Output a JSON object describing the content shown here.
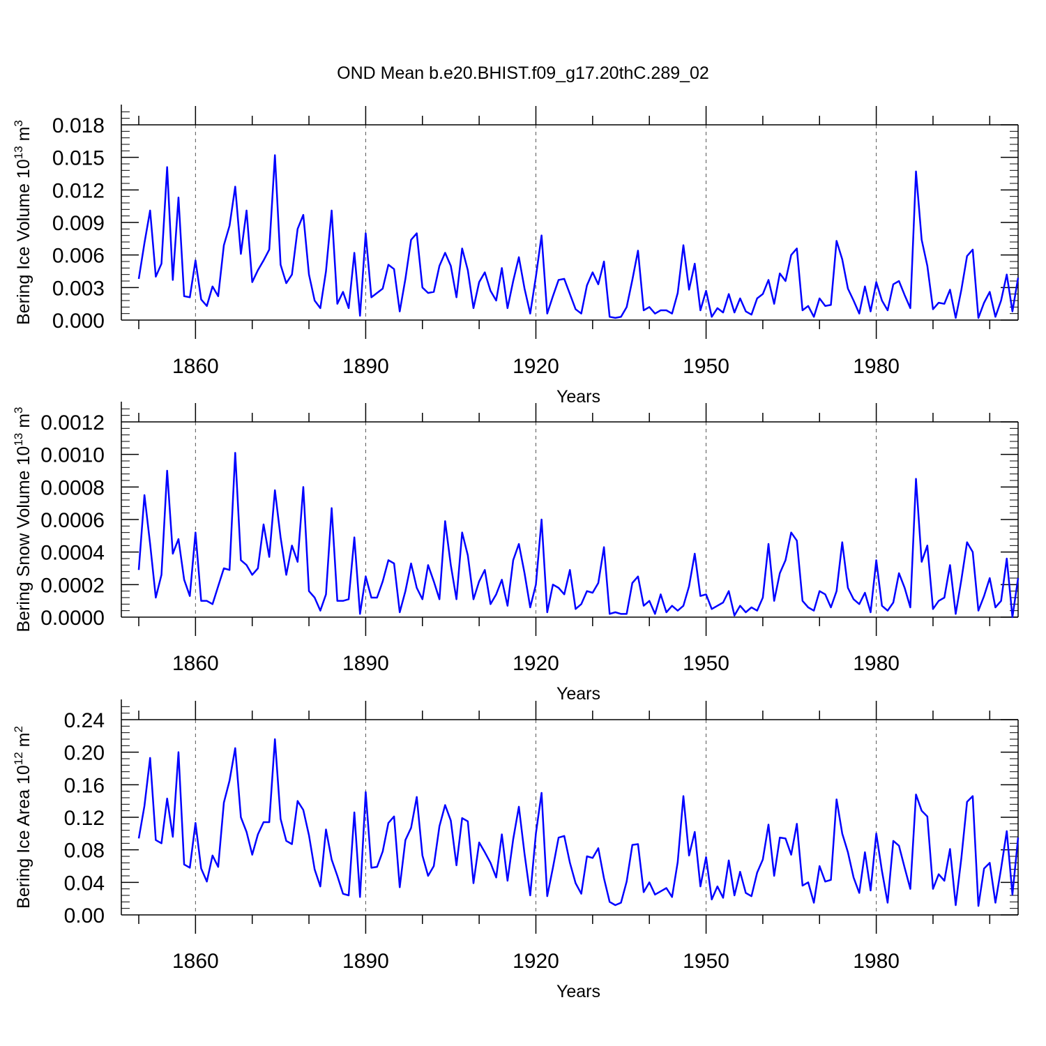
{
  "colors": {
    "line": "#0000ff",
    "axis": "#000000",
    "grid": "#555555"
  },
  "chart_data": [
    {
      "type": "line",
      "title": "OND Mean b.e20.BHIST.f09_g17.20thC.289_02",
      "ylabel_base": "Bering Ice Volume 10",
      "ylabel_exp": "13",
      "ylabel_unit": " m",
      "ylabel_unit_exp": "3",
      "xlabel": "Years",
      "xlim": [
        1850,
        2005
      ],
      "ylim": [
        0,
        0.018
      ],
      "xticks": [
        1860,
        1890,
        1920,
        1950,
        1980
      ],
      "xtick_labels": [
        "1860",
        "1890",
        "1920",
        "1950",
        "1980"
      ],
      "yticks": [
        0,
        0.003,
        0.006,
        0.009,
        0.012,
        0.015,
        0.018
      ],
      "ytick_labels": [
        "0.000",
        "0.003",
        "0.006",
        "0.009",
        "0.012",
        "0.015",
        "0.018"
      ],
      "grid": "vertical dashed at major x ticks",
      "x_start": 1850,
      "values": [
        0.0038,
        0.0071,
        0.0101,
        0.004,
        0.0052,
        0.0141,
        0.0037,
        0.0113,
        0.0022,
        0.0021,
        0.0055,
        0.0019,
        0.0013,
        0.0031,
        0.0022,
        0.0069,
        0.0087,
        0.0123,
        0.0061,
        0.0101,
        0.0035,
        0.0046,
        0.0055,
        0.0065,
        0.0152,
        0.0051,
        0.0034,
        0.0042,
        0.0084,
        0.0097,
        0.0042,
        0.0018,
        0.0011,
        0.0045,
        0.0101,
        0.0015,
        0.0026,
        0.0011,
        0.0062,
        0.0004,
        0.008,
        0.0021,
        0.0025,
        0.0029,
        0.0051,
        0.0047,
        0.0008,
        0.0038,
        0.0074,
        0.008,
        0.003,
        0.0025,
        0.0026,
        0.005,
        0.0062,
        0.005,
        0.0021,
        0.0066,
        0.0046,
        0.0011,
        0.0035,
        0.0044,
        0.0027,
        0.0018,
        0.0048,
        0.0011,
        0.0036,
        0.0058,
        0.0029,
        0.0006,
        0.004,
        0.0078,
        0.0006,
        0.0022,
        0.0037,
        0.0038,
        0.0024,
        0.001,
        0.0006,
        0.0032,
        0.0044,
        0.0033,
        0.0054,
        0.0003,
        0.0002,
        0.0003,
        0.0012,
        0.0037,
        0.0064,
        0.0009,
        0.0012,
        0.0006,
        0.0009,
        0.0009,
        0.0006,
        0.0025,
        0.0069,
        0.0028,
        0.0052,
        0.0009,
        0.0027,
        0.0003,
        0.0011,
        0.0007,
        0.0024,
        0.0007,
        0.002,
        0.0008,
        0.0005,
        0.002,
        0.0024,
        0.0037,
        0.0015,
        0.0043,
        0.0036,
        0.006,
        0.0066,
        0.0009,
        0.0013,
        0.0003,
        0.002,
        0.0013,
        0.0014,
        0.0073,
        0.0056,
        0.0029,
        0.0018,
        0.0006,
        0.0031,
        0.0008,
        0.0035,
        0.0018,
        0.0009,
        0.0033,
        0.0036,
        0.0023,
        0.0011,
        0.0137,
        0.0074,
        0.005,
        0.001,
        0.0016,
        0.0015,
        0.0028,
        0.0002,
        0.0028,
        0.0059,
        0.0065,
        0.0002,
        0.0016,
        0.0026,
        0.0003,
        0.0018,
        0.0042,
        0.0008,
        0.0039
      ]
    },
    {
      "type": "line",
      "ylabel_base": "Bering Snow Volume 10",
      "ylabel_exp": "13",
      "ylabel_unit": " m",
      "ylabel_unit_exp": "3",
      "xlabel": "Years",
      "xlim": [
        1850,
        2005
      ],
      "ylim": [
        0,
        0.0012
      ],
      "xticks": [
        1860,
        1890,
        1920,
        1950,
        1980
      ],
      "xtick_labels": [
        "1860",
        "1890",
        "1920",
        "1950",
        "1980"
      ],
      "yticks": [
        0,
        0.0002,
        0.0004,
        0.0006,
        0.0008,
        0.001,
        0.0012
      ],
      "ytick_labels": [
        "0.0000",
        "0.0002",
        "0.0004",
        "0.0006",
        "0.0008",
        "0.0010",
        "0.0012"
      ],
      "grid": "vertical dashed at major x ticks",
      "x_start": 1850,
      "values": [
        0.00029,
        0.00075,
        0.00045,
        0.00012,
        0.00026,
        0.0009,
        0.00039,
        0.00048,
        0.00023,
        0.00013,
        0.00052,
        0.0001,
        0.0001,
        8e-05,
        0.00019,
        0.0003,
        0.00029,
        0.00101,
        0.00035,
        0.00032,
        0.00026,
        0.0003,
        0.00057,
        0.00037,
        0.00078,
        0.00049,
        0.00026,
        0.00044,
        0.00034,
        0.0008,
        0.00016,
        0.00012,
        4e-05,
        0.00014,
        0.00067,
        0.0001,
        0.0001,
        0.00011,
        0.00049,
        2e-05,
        0.00025,
        0.00012,
        0.00012,
        0.00022,
        0.00035,
        0.00033,
        3e-05,
        0.00016,
        0.00033,
        0.00018,
        0.00011,
        0.00032,
        0.00022,
        0.00011,
        0.00059,
        0.00032,
        0.00011,
        0.00052,
        0.00038,
        0.00011,
        0.00022,
        0.00029,
        8e-05,
        0.00014,
        0.00023,
        7e-05,
        0.00035,
        0.00045,
        0.00027,
        6e-05,
        0.0002,
        0.0006,
        3e-05,
        0.0002,
        0.00018,
        0.00014,
        0.00029,
        5e-05,
        8e-05,
        0.00016,
        0.00015,
        0.00021,
        0.00043,
        2e-05,
        3e-05,
        2e-05,
        2e-05,
        0.00021,
        0.00025,
        7e-05,
        0.0001,
        2e-05,
        0.00014,
        3e-05,
        7e-05,
        4e-05,
        7e-05,
        0.00019,
        0.00039,
        0.00013,
        0.00014,
        5e-05,
        7e-05,
        9e-05,
        0.00016,
        1e-05,
        7e-05,
        3e-05,
        6e-05,
        4e-05,
        0.00012,
        0.00045,
        0.0001,
        0.00027,
        0.00035,
        0.00052,
        0.00047,
        0.0001,
        6e-05,
        4e-05,
        0.00016,
        0.00014,
        6e-05,
        0.00016,
        0.00046,
        0.00018,
        0.00011,
        8e-05,
        0.00015,
        3e-05,
        0.00035,
        7e-05,
        4e-05,
        9e-05,
        0.00027,
        0.00018,
        6e-05,
        0.00085,
        0.00034,
        0.00044,
        5e-05,
        0.0001,
        0.00012,
        0.00032,
        2e-05,
        0.00023,
        0.00046,
        0.0004,
        4e-05,
        0.00013,
        0.00024,
        6e-05,
        0.0001,
        0.00036,
        0.0,
        0.00024
      ]
    },
    {
      "type": "line",
      "ylabel_base": "Bering Ice Area 10",
      "ylabel_exp": "12",
      "ylabel_unit": " m",
      "ylabel_unit_exp": "2",
      "xlabel": "Years",
      "xlim": [
        1850,
        2005
      ],
      "ylim": [
        0,
        0.24
      ],
      "xticks": [
        1860,
        1890,
        1920,
        1950,
        1980
      ],
      "xtick_labels": [
        "1860",
        "1890",
        "1920",
        "1950",
        "1980"
      ],
      "yticks": [
        0,
        0.04,
        0.08,
        0.12,
        0.16,
        0.2,
        0.24
      ],
      "ytick_labels": [
        "0.00",
        "0.04",
        "0.08",
        "0.12",
        "0.16",
        "0.20",
        "0.24"
      ],
      "grid": "vertical dashed at major x ticks",
      "x_start": 1850,
      "values": [
        0.094,
        0.134,
        0.193,
        0.092,
        0.088,
        0.143,
        0.096,
        0.2,
        0.062,
        0.058,
        0.113,
        0.057,
        0.041,
        0.073,
        0.059,
        0.138,
        0.165,
        0.205,
        0.12,
        0.102,
        0.074,
        0.099,
        0.114,
        0.114,
        0.216,
        0.118,
        0.091,
        0.087,
        0.14,
        0.129,
        0.098,
        0.056,
        0.035,
        0.105,
        0.068,
        0.048,
        0.026,
        0.024,
        0.126,
        0.022,
        0.151,
        0.058,
        0.059,
        0.078,
        0.113,
        0.121,
        0.034,
        0.092,
        0.107,
        0.145,
        0.073,
        0.048,
        0.06,
        0.109,
        0.135,
        0.116,
        0.061,
        0.119,
        0.115,
        0.039,
        0.089,
        0.077,
        0.064,
        0.046,
        0.099,
        0.042,
        0.093,
        0.133,
        0.075,
        0.024,
        0.1,
        0.15,
        0.023,
        0.058,
        0.095,
        0.097,
        0.064,
        0.039,
        0.026,
        0.072,
        0.07,
        0.082,
        0.045,
        0.016,
        0.012,
        0.015,
        0.041,
        0.086,
        0.087,
        0.028,
        0.04,
        0.025,
        0.029,
        0.033,
        0.022,
        0.065,
        0.146,
        0.073,
        0.102,
        0.035,
        0.071,
        0.019,
        0.035,
        0.021,
        0.067,
        0.024,
        0.053,
        0.027,
        0.023,
        0.052,
        0.068,
        0.111,
        0.048,
        0.095,
        0.094,
        0.074,
        0.112,
        0.036,
        0.04,
        0.015,
        0.06,
        0.041,
        0.043,
        0.142,
        0.1,
        0.077,
        0.046,
        0.027,
        0.077,
        0.03,
        0.1,
        0.054,
        0.015,
        0.091,
        0.085,
        0.058,
        0.032,
        0.148,
        0.128,
        0.121,
        0.032,
        0.05,
        0.042,
        0.081,
        0.012,
        0.07,
        0.139,
        0.146,
        0.011,
        0.057,
        0.064,
        0.015,
        0.057,
        0.103,
        0.025,
        0.095
      ]
    }
  ]
}
